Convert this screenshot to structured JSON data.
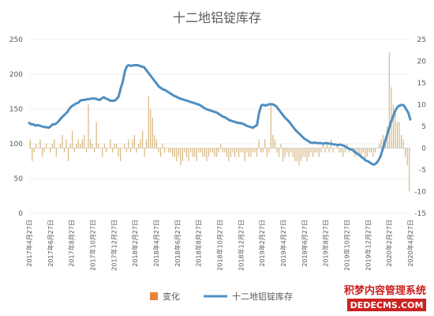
{
  "chart_data": {
    "type": "bar+line",
    "title": "十二地铝锭库存",
    "x_labels": [
      "2017年4月27日",
      "2017年6月27日",
      "2017年8月27日",
      "2017年10月27日",
      "2017年12月27日",
      "2018年2月27日",
      "2018年4月27日",
      "2018年6月27日",
      "2018年8月27日",
      "2018年10月27日",
      "2018年12月27日",
      "2019年2月27日",
      "2019年4月27日",
      "2019年6月27日",
      "2019年8月27日",
      "2019年10月27日",
      "2019年12月27日",
      "2020年2月27日",
      "2020年4月27日"
    ],
    "y_left": {
      "min": 0,
      "max": 250,
      "ticks": [
        0,
        50,
        100,
        150,
        200,
        250
      ]
    },
    "y_right": {
      "min": -15,
      "max": 25,
      "ticks": [
        -15,
        -10,
        -5,
        0,
        5,
        10,
        15,
        20,
        25
      ]
    },
    "series": [
      {
        "name": "变化",
        "type": "bar",
        "axis": "right",
        "color": "#d5b37c",
        "values": [
          2,
          -3,
          -1,
          1,
          0,
          2,
          -2,
          -1,
          1,
          0,
          -1,
          1,
          2,
          -2,
          0,
          1,
          3,
          -1,
          2,
          -3,
          1,
          4,
          -1,
          1,
          2,
          1,
          2,
          3,
          -1,
          10,
          2,
          1,
          -1,
          6,
          1,
          0,
          -2,
          1,
          -1,
          0,
          2,
          -1,
          1,
          1,
          -2,
          -3,
          0,
          1,
          -1,
          2,
          -1,
          2,
          3,
          -1,
          1,
          2,
          4,
          -2,
          2,
          12,
          9,
          7,
          3,
          2,
          -1,
          -2,
          1,
          -1,
          0,
          -1,
          -1,
          -2,
          -2,
          -3,
          -2,
          -4,
          -3,
          -1,
          -2,
          -3,
          -1,
          -2,
          -2,
          -3,
          -1,
          -1,
          -2,
          -2,
          -3,
          -2,
          -1,
          -1,
          -2,
          -2,
          -1,
          1,
          -1,
          -1,
          -2,
          -3,
          -2,
          -1,
          -2,
          -1,
          -2,
          -1,
          -1,
          -3,
          -1,
          -2,
          -2,
          -1,
          -1,
          -2,
          2,
          -1,
          -1,
          2,
          -2,
          -1,
          10,
          3,
          2,
          -1,
          -2,
          1,
          -3,
          -2,
          -1,
          -2,
          -1,
          -2,
          -3,
          -3,
          -4,
          -3,
          -2,
          -2,
          -3,
          -2,
          -1,
          -2,
          -1,
          -1,
          -2,
          -1,
          1,
          -1,
          1,
          -1,
          2,
          -1,
          0,
          1,
          -1,
          -1,
          -2,
          -1,
          1,
          -1,
          0,
          -1,
          -2,
          -1,
          -2,
          -2,
          -1,
          -3,
          -2,
          -1,
          -1,
          -2,
          -1,
          0,
          1,
          2,
          3,
          2,
          5,
          22,
          14,
          10,
          8,
          6,
          6,
          3,
          2,
          -2,
          -4,
          -10
        ]
      },
      {
        "name": "十二地铝锭库存",
        "type": "line",
        "axis": "left",
        "color": "#4f8fc0",
        "values": [
          130,
          128,
          128,
          126,
          127,
          126,
          125,
          124,
          124,
          123,
          125,
          128,
          128,
          130,
          133,
          137,
          140,
          143,
          146,
          151,
          154,
          156,
          158,
          159,
          162,
          163,
          163,
          164,
          164,
          165,
          165,
          165,
          164,
          163,
          165,
          167,
          165,
          164,
          162,
          162,
          162,
          164,
          168,
          180,
          190,
          205,
          212,
          213,
          212,
          213,
          213,
          213,
          212,
          211,
          210,
          206,
          202,
          198,
          194,
          190,
          186,
          182,
          180,
          178,
          177,
          175,
          173,
          171,
          169,
          168,
          166,
          165,
          164,
          163,
          162,
          161,
          160,
          159,
          158,
          157,
          156,
          154,
          152,
          150,
          149,
          148,
          147,
          146,
          145,
          143,
          141,
          139,
          138,
          136,
          134,
          133,
          132,
          131,
          130,
          130,
          129,
          128,
          126,
          125,
          124,
          123,
          125,
          127,
          145,
          155,
          156,
          155,
          156,
          157,
          157,
          156,
          154,
          150,
          146,
          142,
          138,
          135,
          132,
          128,
          124,
          120,
          117,
          114,
          111,
          108,
          106,
          104,
          102,
          101,
          102,
          101,
          101,
          101,
          100,
          101,
          101,
          100,
          100,
          99,
          99,
          98,
          99,
          98,
          97,
          95,
          93,
          92,
          91,
          88,
          86,
          84,
          81,
          79,
          76,
          75,
          73,
          71,
          70,
          72,
          76,
          82,
          92,
          102,
          112,
          122,
          132,
          140,
          148,
          153,
          155,
          156,
          155,
          150,
          145,
          135
        ]
      }
    ]
  },
  "legend": {
    "bar_label": "变化",
    "line_label": "十二地铝锭库存"
  },
  "watermark": {
    "line1": "积梦内容管理系统",
    "line2": "DEDECMS.COM"
  }
}
